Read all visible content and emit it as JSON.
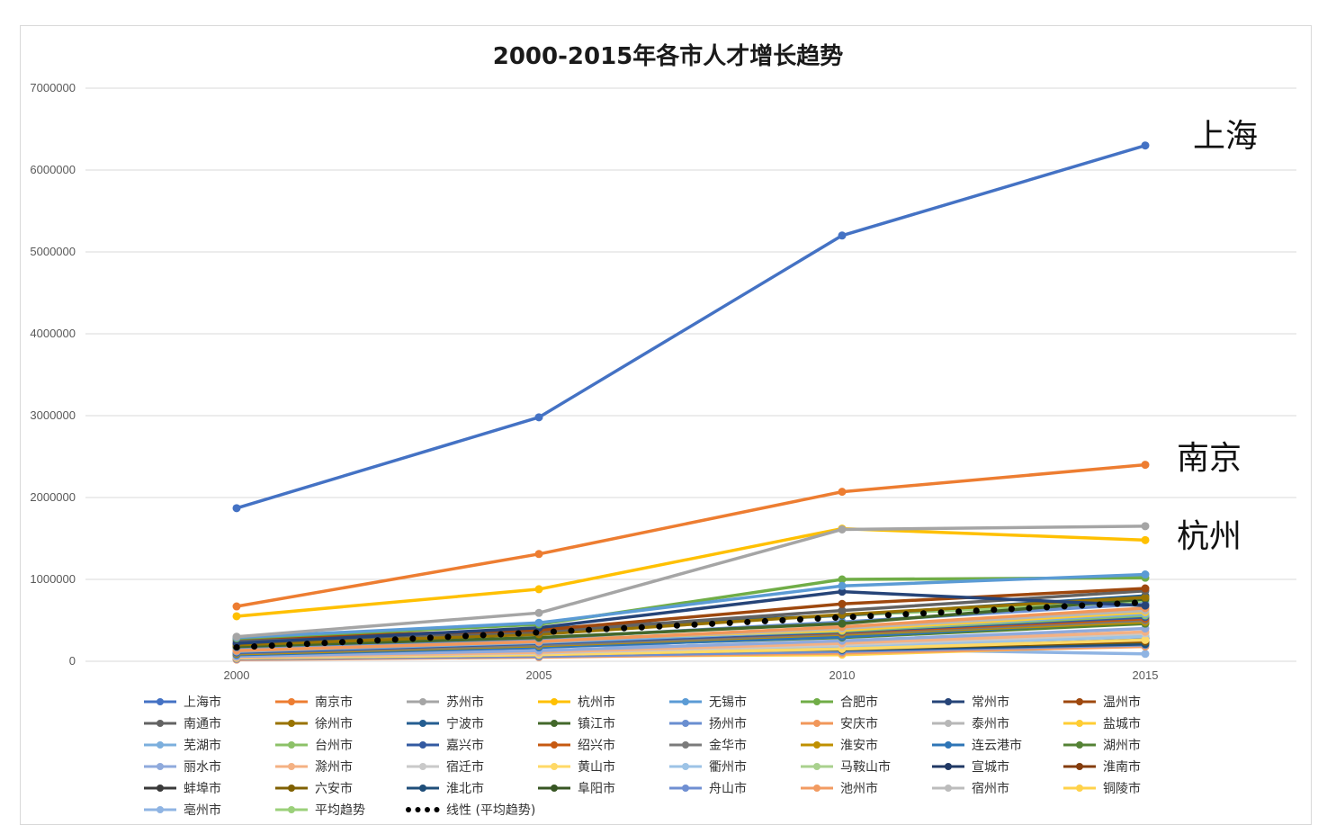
{
  "chart_data": {
    "type": "line",
    "title": "2000-2015年各市人才增长趋势",
    "categories": [
      "2000",
      "2005",
      "2010",
      "2015"
    ],
    "ylim": [
      0,
      7000000
    ],
    "yticks": [
      "0",
      "1000000",
      "2000000",
      "3000000",
      "4000000",
      "5000000",
      "6000000",
      "7000000"
    ],
    "grid": true,
    "legend_position": "bottom",
    "annotations": [
      "上海",
      "南京",
      "杭州"
    ],
    "series": [
      {
        "name": "上海市",
        "color": "#4472c4",
        "values": [
          1870000,
          2980000,
          5200000,
          6300000
        ]
      },
      {
        "name": "南京市",
        "color": "#ed7d31",
        "values": [
          670000,
          1310000,
          2070000,
          2400000
        ]
      },
      {
        "name": "苏州市",
        "color": "#a5a5a5",
        "values": [
          300000,
          590000,
          1610000,
          1650000
        ]
      },
      {
        "name": "杭州市",
        "color": "#ffc000",
        "values": [
          550000,
          880000,
          1620000,
          1480000
        ]
      },
      {
        "name": "无锡市",
        "color": "#5b9bd5",
        "values": [
          290000,
          470000,
          920000,
          1060000
        ]
      },
      {
        "name": "合肥市",
        "color": "#70ad47",
        "values": [
          280000,
          450000,
          1000000,
          1020000
        ]
      },
      {
        "name": "常州市",
        "color": "#264478",
        "values": [
          220000,
          410000,
          850000,
          680000
        ]
      },
      {
        "name": "温州市",
        "color": "#9e480e",
        "values": [
          280000,
          380000,
          700000,
          890000
        ]
      },
      {
        "name": "南通市",
        "color": "#636363",
        "values": [
          250000,
          360000,
          620000,
          860000
        ]
      },
      {
        "name": "徐州市",
        "color": "#997300",
        "values": [
          200000,
          330000,
          570000,
          780000
        ]
      },
      {
        "name": "宁波市",
        "color": "#255e91",
        "values": [
          210000,
          400000,
          560000,
          800000
        ]
      },
      {
        "name": "镇江市",
        "color": "#43682b",
        "values": [
          180000,
          290000,
          460000,
          760000
        ]
      },
      {
        "name": "扬州市",
        "color": "#698ed0",
        "values": [
          170000,
          280000,
          480000,
          700000
        ]
      },
      {
        "name": "安庆市",
        "color": "#f1975a",
        "values": [
          130000,
          240000,
          420000,
          650000
        ]
      },
      {
        "name": "泰州市",
        "color": "#b7b7b7",
        "values": [
          150000,
          250000,
          400000,
          620000
        ]
      },
      {
        "name": "盐城市",
        "color": "#ffcd33",
        "values": [
          140000,
          260000,
          380000,
          600000
        ]
      },
      {
        "name": "芜湖市",
        "color": "#7cafdd",
        "values": [
          120000,
          230000,
          380000,
          580000
        ]
      },
      {
        "name": "台州市",
        "color": "#8cc168",
        "values": [
          130000,
          250000,
          370000,
          560000
        ]
      },
      {
        "name": "嘉兴市",
        "color": "#335aa1",
        "values": [
          110000,
          220000,
          360000,
          540000
        ]
      },
      {
        "name": "绍兴市",
        "color": "#c65911",
        "values": [
          120000,
          230000,
          350000,
          520000
        ]
      },
      {
        "name": "金华市",
        "color": "#7b7b7b",
        "values": [
          100000,
          200000,
          340000,
          500000
        ]
      },
      {
        "name": "淮安市",
        "color": "#bf9000",
        "values": [
          90000,
          190000,
          330000,
          480000
        ]
      },
      {
        "name": "连云港市",
        "color": "#2e75b6",
        "values": [
          80000,
          170000,
          300000,
          490000
        ]
      },
      {
        "name": "湖州市",
        "color": "#548235",
        "values": [
          90000,
          180000,
          290000,
          460000
        ]
      },
      {
        "name": "丽水市",
        "color": "#8faadc",
        "values": [
          60000,
          130000,
          250000,
          400000
        ]
      },
      {
        "name": "滁州市",
        "color": "#f4b183",
        "values": [
          50000,
          110000,
          220000,
          360000
        ]
      },
      {
        "name": "宿迁市",
        "color": "#c9c9c9",
        "values": [
          50000,
          100000,
          200000,
          340000
        ]
      },
      {
        "name": "黄山市",
        "color": "#ffd966",
        "values": [
          40000,
          80000,
          150000,
          260000
        ]
      },
      {
        "name": "衢州市",
        "color": "#9dc3e6",
        "values": [
          50000,
          100000,
          180000,
          300000
        ]
      },
      {
        "name": "马鞍山市",
        "color": "#a9d18e",
        "values": [
          60000,
          120000,
          200000,
          310000
        ]
      },
      {
        "name": "宣城市",
        "color": "#203864",
        "values": [
          40000,
          90000,
          170000,
          280000
        ]
      },
      {
        "name": "淮南市",
        "color": "#843c0c",
        "values": [
          50000,
          100000,
          160000,
          250000
        ]
      },
      {
        "name": "蚌埠市",
        "color": "#3a3a3a",
        "values": [
          60000,
          120000,
          190000,
          290000
        ]
      },
      {
        "name": "六安市",
        "color": "#7f6000",
        "values": [
          40000,
          80000,
          150000,
          240000
        ]
      },
      {
        "name": "淮北市",
        "color": "#1f4e79",
        "values": [
          90000,
          130000,
          140000,
          210000
        ]
      },
      {
        "name": "阜阳市",
        "color": "#375623",
        "values": [
          50000,
          90000,
          160000,
          230000
        ]
      },
      {
        "name": "舟山市",
        "color": "#6f8fd2",
        "values": [
          30000,
          60000,
          120000,
          200000
        ]
      },
      {
        "name": "池州市",
        "color": "#f29b62",
        "values": [
          20000,
          50000,
          100000,
          180000
        ]
      },
      {
        "name": "宿州市",
        "color": "#bcbcbc",
        "values": [
          40000,
          70000,
          130000,
          220000
        ]
      },
      {
        "name": "铜陵市",
        "color": "#ffd24a",
        "values": [
          30000,
          60000,
          80000,
          190000
        ]
      },
      {
        "name": "亳州市",
        "color": "#8fb4e3",
        "values": [
          30000,
          210000,
          150000,
          90000
        ]
      },
      {
        "name": "平均趋势",
        "color": "#9bd07a",
        "values": [
          170000,
          390000,
          560000,
          730000
        ]
      }
    ],
    "trendline": {
      "name": "线性 (平均趋势)",
      "color": "#000000",
      "style": "dotted",
      "values": [
        170000,
        720000
      ]
    }
  }
}
